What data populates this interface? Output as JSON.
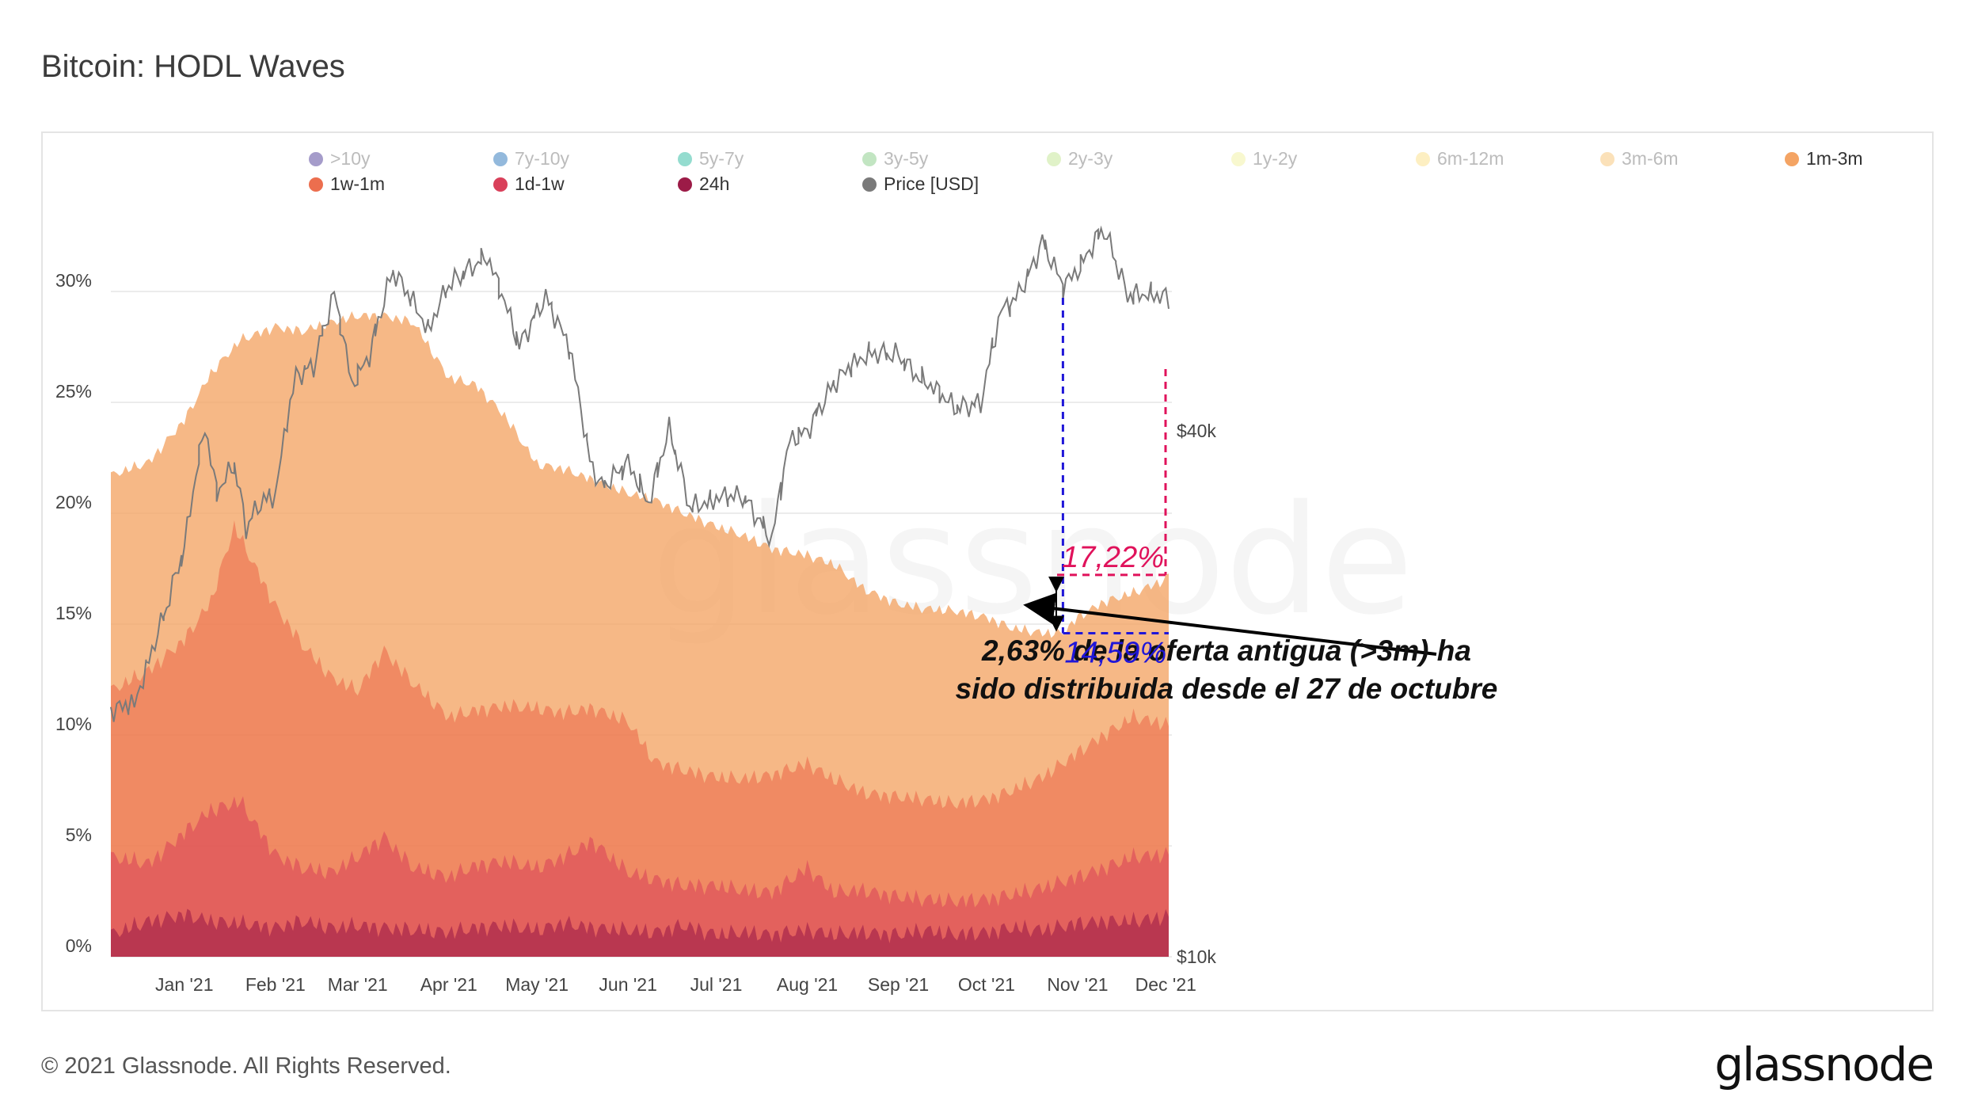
{
  "header": {
    "title": "Bitcoin: HODL Waves"
  },
  "footer": {
    "copyright": "© 2021 Glassnode. All Rights Reserved.",
    "logo": "glassnode"
  },
  "chart_data": {
    "type": "area",
    "title": "Bitcoin: HODL Waves",
    "watermark": "glassnode",
    "stacked": true,
    "x_labels": [
      "Jan '21",
      "Feb '21",
      "Mar '21",
      "Apr '21",
      "May '21",
      "Jun '21",
      "Jul '21",
      "Aug '21",
      "Sep '21",
      "Oct '21",
      "Nov '21",
      "Dec '21"
    ],
    "x_dates": [
      "2021-01-01",
      "2021-02-01",
      "2021-03-01",
      "2021-04-01",
      "2021-05-01",
      "2021-06-01",
      "2021-07-01",
      "2021-08-01",
      "2021-09-01",
      "2021-10-01",
      "2021-11-01",
      "2021-12-01"
    ],
    "x_range": [
      "2020-12-07",
      "2021-12-02"
    ],
    "y_left": {
      "label": "",
      "ticks": [
        "0%",
        "5%",
        "10%",
        "15%",
        "20%",
        "25%",
        "30%"
      ],
      "ylim": [
        0,
        30
      ]
    },
    "y_right": {
      "label": "",
      "ticks": [
        "$10k",
        "$40k"
      ],
      "scale": "log"
    },
    "grid": true,
    "legend": {
      "position": "top",
      "entries": [
        {
          "name": ">10y",
          "color": "#5b4a9f",
          "active": false
        },
        {
          "name": "7y-10y",
          "color": "#3a7fbf",
          "active": false
        },
        {
          "name": "5y-7y",
          "color": "#3dbfa8",
          "active": false
        },
        {
          "name": "3y-5y",
          "color": "#8fd08f",
          "active": false
        },
        {
          "name": "2y-3y",
          "color": "#c7e89a",
          "active": false
        },
        {
          "name": "1y-2y",
          "color": "#f3f3a8",
          "active": false
        },
        {
          "name": "6m-12m",
          "color": "#fbe18f",
          "active": false
        },
        {
          "name": "3m-6m",
          "color": "#f8c880",
          "active": false
        },
        {
          "name": "1m-3m",
          "color": "#f4a464",
          "active": true
        },
        {
          "name": "1w-1m",
          "color": "#ec6e4e",
          "active": true
        },
        {
          "name": "1d-1w",
          "color": "#d9405a",
          "active": true
        },
        {
          "name": "24h",
          "color": "#9c1b47",
          "active": true
        },
        {
          "name": "Price [USD]",
          "color": "#7a7a7a",
          "active": true
        }
      ]
    },
    "series": [
      {
        "name": "1m-3m",
        "color": "#f4a464",
        "opacity": 0.78,
        "x": [
          "2020-12-07",
          "2020-12-20",
          "2021-01-01",
          "2021-01-10",
          "2021-01-20",
          "2021-02-01",
          "2021-02-10",
          "2021-02-20",
          "2021-03-01",
          "2021-03-10",
          "2021-03-20",
          "2021-04-01",
          "2021-04-10",
          "2021-04-20",
          "2021-05-01",
          "2021-05-10",
          "2021-05-20",
          "2021-06-01",
          "2021-06-10",
          "2021-06-20",
          "2021-07-01",
          "2021-07-10",
          "2021-07-20",
          "2021-08-01",
          "2021-08-10",
          "2021-08-20",
          "2021-09-01",
          "2021-09-10",
          "2021-09-20",
          "2021-10-01",
          "2021-10-10",
          "2021-10-20",
          "2021-10-27",
          "2021-11-01",
          "2021-11-10",
          "2021-11-20",
          "2021-12-01",
          "2021-12-02"
        ],
        "values": [
          21.7,
          22.3,
          24.2,
          26.3,
          27.8,
          28.4,
          28.2,
          28.6,
          28.9,
          28.9,
          28.6,
          26.1,
          25.8,
          24.4,
          22.2,
          22.0,
          21.5,
          20.9,
          20.6,
          20.0,
          19.4,
          19.0,
          18.4,
          18.1,
          17.7,
          16.6,
          15.9,
          15.7,
          15.6,
          15.3,
          14.8,
          14.6,
          14.59,
          15.3,
          16.0,
          16.4,
          17.0,
          17.22
        ]
      },
      {
        "name": "1w-1m",
        "color": "#ec6e4e",
        "opacity": 0.62,
        "x": [
          "2020-12-07",
          "2020-12-20",
          "2021-01-01",
          "2021-01-10",
          "2021-01-18",
          "2021-01-25",
          "2021-02-01",
          "2021-02-10",
          "2021-02-20",
          "2021-03-01",
          "2021-03-10",
          "2021-03-20",
          "2021-04-01",
          "2021-04-10",
          "2021-04-20",
          "2021-05-01",
          "2021-05-10",
          "2021-05-20",
          "2021-06-01",
          "2021-06-10",
          "2021-06-20",
          "2021-07-01",
          "2021-07-10",
          "2021-07-20",
          "2021-08-01",
          "2021-08-10",
          "2021-08-20",
          "2021-09-01",
          "2021-09-10",
          "2021-09-20",
          "2021-10-01",
          "2021-10-10",
          "2021-10-20",
          "2021-11-01",
          "2021-11-10",
          "2021-11-20",
          "2021-12-01",
          "2021-12-02"
        ],
        "values": [
          12.0,
          12.9,
          14.3,
          16.0,
          19.4,
          17.6,
          15.8,
          14.1,
          12.6,
          12.0,
          13.8,
          12.3,
          10.8,
          11.1,
          11.3,
          11.2,
          11.0,
          11.2,
          10.6,
          8.8,
          8.4,
          8.1,
          8.0,
          8.2,
          8.7,
          8.0,
          7.4,
          7.2,
          7.1,
          6.9,
          7.1,
          7.5,
          8.1,
          9.2,
          10.0,
          10.8,
          10.5,
          10.3
        ]
      },
      {
        "name": "1d-1w",
        "color": "#d9405a",
        "opacity": 0.55,
        "x": [
          "2020-12-07",
          "2020-12-20",
          "2021-01-01",
          "2021-01-10",
          "2021-01-20",
          "2021-02-01",
          "2021-02-10",
          "2021-02-20",
          "2021-03-01",
          "2021-03-10",
          "2021-03-20",
          "2021-04-01",
          "2021-04-10",
          "2021-04-20",
          "2021-05-01",
          "2021-05-10",
          "2021-05-20",
          "2021-06-01",
          "2021-06-10",
          "2021-06-20",
          "2021-07-01",
          "2021-07-10",
          "2021-07-20",
          "2021-08-01",
          "2021-08-10",
          "2021-08-20",
          "2021-09-01",
          "2021-09-10",
          "2021-09-20",
          "2021-10-01",
          "2021-10-10",
          "2021-10-20",
          "2021-11-01",
          "2021-11-10",
          "2021-11-20",
          "2021-12-01",
          "2021-12-02"
        ],
        "values": [
          4.5,
          4.2,
          5.6,
          6.6,
          7.0,
          4.6,
          4.0,
          3.8,
          4.5,
          5.4,
          4.0,
          3.6,
          4.1,
          4.3,
          4.0,
          4.5,
          5.2,
          3.8,
          3.5,
          3.2,
          3.2,
          3.0,
          2.9,
          4.0,
          2.9,
          3.0,
          2.7,
          2.6,
          2.5,
          2.6,
          2.8,
          3.1,
          3.6,
          4.0,
          4.5,
          4.6,
          4.5
        ]
      },
      {
        "name": "24h",
        "color": "#9c1b47",
        "opacity": 0.6,
        "x": [
          "2020-12-07",
          "2020-12-20",
          "2021-01-01",
          "2021-01-10",
          "2021-01-20",
          "2021-02-01",
          "2021-02-10",
          "2021-02-20",
          "2021-03-01",
          "2021-03-10",
          "2021-03-20",
          "2021-04-01",
          "2021-04-10",
          "2021-04-20",
          "2021-05-01",
          "2021-05-10",
          "2021-05-20",
          "2021-06-01",
          "2021-06-10",
          "2021-06-20",
          "2021-07-01",
          "2021-07-10",
          "2021-07-20",
          "2021-08-01",
          "2021-08-10",
          "2021-08-20",
          "2021-09-01",
          "2021-09-10",
          "2021-09-20",
          "2021-10-01",
          "2021-10-10",
          "2021-10-20",
          "2021-11-01",
          "2021-11-10",
          "2021-11-20",
          "2021-12-01",
          "2021-12-02"
        ],
        "values": [
          1.0,
          1.6,
          1.9,
          1.6,
          1.5,
          1.3,
          1.6,
          1.3,
          1.4,
          1.3,
          1.2,
          1.1,
          1.3,
          1.4,
          1.2,
          1.5,
          1.3,
          1.2,
          1.1,
          1.4,
          1.0,
          1.1,
          1.0,
          1.2,
          1.0,
          1.1,
          1.0,
          1.2,
          1.0,
          1.1,
          1.3,
          1.2,
          1.5,
          1.6,
          1.6,
          1.8,
          1.7
        ]
      }
    ],
    "price": {
      "name": "Price [USD]",
      "color": "#7a7a7a",
      "x": [
        "2020-12-07",
        "2020-12-15",
        "2020-12-25",
        "2021-01-01",
        "2021-01-08",
        "2021-01-12",
        "2021-01-18",
        "2021-01-22",
        "2021-01-28",
        "2021-02-01",
        "2021-02-08",
        "2021-02-14",
        "2021-02-21",
        "2021-02-27",
        "2021-03-05",
        "2021-03-13",
        "2021-03-25",
        "2021-04-01",
        "2021-04-14",
        "2021-04-25",
        "2021-05-04",
        "2021-05-12",
        "2021-05-19",
        "2021-05-23",
        "2021-06-01",
        "2021-06-08",
        "2021-06-15",
        "2021-06-22",
        "2021-07-01",
        "2021-07-10",
        "2021-07-20",
        "2021-07-26",
        "2021-08-01",
        "2021-08-10",
        "2021-08-15",
        "2021-08-22",
        "2021-09-01",
        "2021-09-07",
        "2021-09-13",
        "2021-09-20",
        "2021-09-29",
        "2021-10-06",
        "2021-10-10",
        "2021-10-16",
        "2021-10-20",
        "2021-10-27",
        "2021-11-01",
        "2021-11-08",
        "2021-11-10",
        "2021-11-18",
        "2021-11-25",
        "2021-11-30",
        "2021-12-02"
      ],
      "values": [
        19200,
        19400,
        24500,
        29300,
        40500,
        34000,
        36500,
        31000,
        33500,
        33800,
        46300,
        47500,
        57500,
        45000,
        48900,
        61000,
        52300,
        58700,
        63500,
        50000,
        57000,
        49700,
        37000,
        34500,
        36700,
        33000,
        40100,
        32600,
        33500,
        33700,
        30000,
        39000,
        40000,
        45300,
        47100,
        49200,
        48800,
        46300,
        44900,
        42500,
        43000,
        55000,
        56000,
        61000,
        66000,
        58500,
        61000,
        67000,
        68000,
        57000,
        57500,
        57000,
        56500
      ]
    },
    "annotations": {
      "text_line1": "2,63% de la oferta antigua (>3m) ha",
      "text_line2": "sido distribuida desde el 27 de octubre",
      "start_label": "14,59%",
      "end_label": "17,22%",
      "start_date": "2021-10-27",
      "end_date": "2021-12-02",
      "start_value": 14.59,
      "end_value": 17.22,
      "start_color": "#1f16d8",
      "end_color": "#e0125b"
    }
  }
}
